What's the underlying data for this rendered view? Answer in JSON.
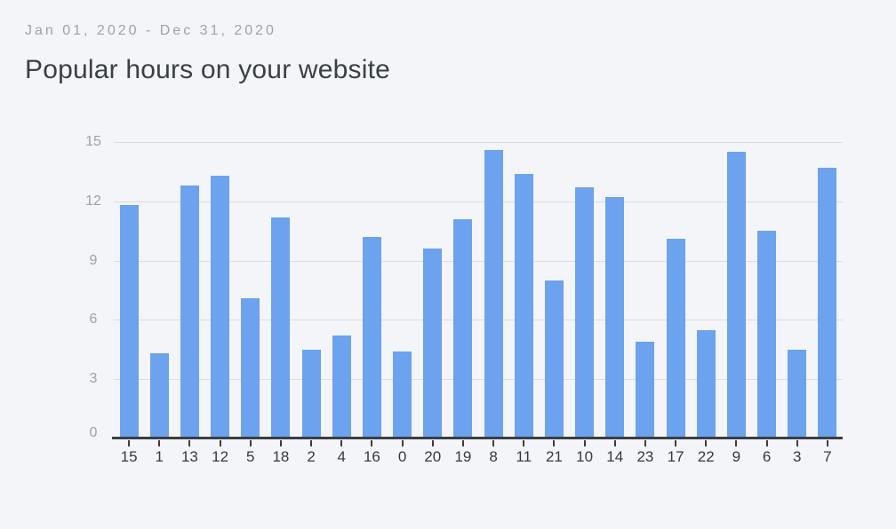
{
  "header": {
    "date_range": "Jan 01, 2020 - Dec 31, 2020",
    "title": "Popular hours on your website"
  },
  "chart_data": {
    "type": "bar",
    "title": "Popular hours on your website",
    "categories": [
      "15",
      "1",
      "13",
      "12",
      "5",
      "18",
      "2",
      "4",
      "16",
      "0",
      "20",
      "19",
      "8",
      "11",
      "21",
      "10",
      "14",
      "23",
      "17",
      "22",
      "9",
      "6",
      "3",
      "7"
    ],
    "values": [
      11.8,
      4.3,
      12.8,
      13.3,
      7.1,
      11.2,
      4.5,
      5.2,
      10.2,
      4.4,
      9.6,
      11.1,
      14.6,
      13.4,
      8.0,
      12.7,
      12.2,
      4.9,
      10.1,
      5.5,
      14.5,
      10.5,
      4.5,
      13.7
    ],
    "xlabel": "",
    "ylabel": "",
    "ylim": [
      0,
      15
    ],
    "yticks": [
      0,
      3,
      6,
      9,
      12,
      15
    ],
    "grid": true,
    "legend": "none",
    "bar_color": "#6ca2ee"
  },
  "colors": {
    "background": "#f3f5f9",
    "bar": "#6ca2ee",
    "gridline": "#dadce0",
    "axis": "#3a3e42",
    "x_label": "#35393c",
    "y_label": "#98a3a5",
    "title": "#3b4043",
    "date": "#9aa5a8"
  }
}
